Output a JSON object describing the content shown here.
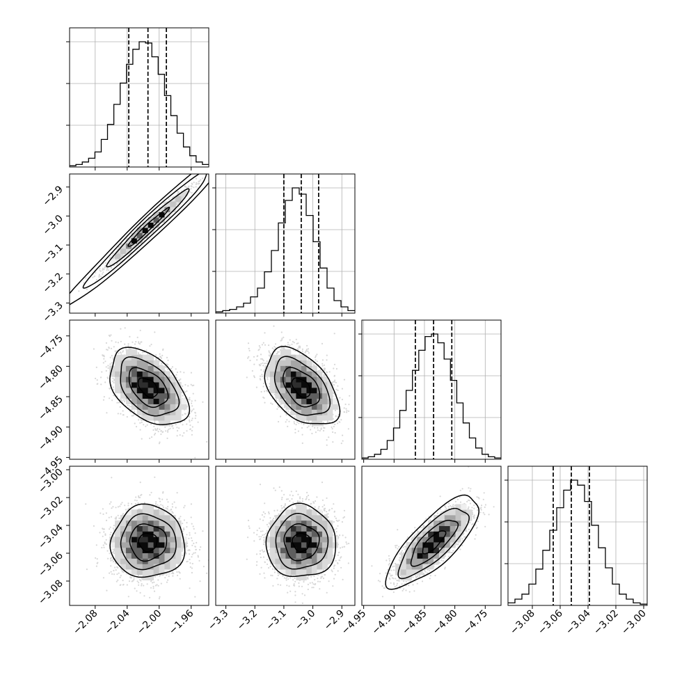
{
  "chart_data": {
    "type": "corner",
    "title": "",
    "parameters": [
      {
        "id": "p1",
        "label": "",
        "range": [
          -2.112,
          -1.938
        ],
        "ticks": [
          -2.08,
          -2.04,
          -2.0,
          -1.96
        ],
        "tick_labels": [
          "−2.08",
          "−2.04",
          "−2.00",
          "−1.96"
        ],
        "quantiles": [
          -2.038,
          -2.014,
          -1.991
        ],
        "mean": -2.014,
        "sd": 0.023
      },
      {
        "id": "p2",
        "label": "",
        "range": [
          -3.335,
          -2.855
        ],
        "ticks": [
          -3.3,
          -3.2,
          -3.1,
          -3.0,
          -2.9
        ],
        "tick_labels": [
          "−3.3",
          "−3.2",
          "−3.1",
          "−3.0",
          "−2.9"
        ],
        "quantiles": [
          -3.1,
          -3.04,
          -2.98
        ],
        "mean": -3.04,
        "sd": 0.06
      },
      {
        "id": "p3",
        "label": "",
        "range": [
          -4.953,
          -4.724
        ],
        "ticks": [
          -4.95,
          -4.9,
          -4.85,
          -4.8,
          -4.75
        ],
        "tick_labels": [
          "−4.95",
          "−4.90",
          "−4.85",
          "−4.80",
          "−4.75"
        ],
        "quantiles": [
          -4.865,
          -4.835,
          -4.805
        ],
        "mean": -4.835,
        "sd": 0.03
      },
      {
        "id": "p4",
        "label": "",
        "range": [
          -3.0975,
          -2.9975
        ],
        "ticks": [
          -3.08,
          -3.06,
          -3.04,
          -3.02,
          -3.0
        ],
        "tick_labels": [
          "−3.08",
          "−3.06",
          "−3.04",
          "−3.02",
          "−3.00"
        ],
        "quantiles": [
          -3.065,
          -3.052,
          -3.039
        ],
        "mean": -3.052,
        "sd": 0.013
      }
    ],
    "correlations": {
      "p1_p2": 0.98,
      "p1_p3": -0.45,
      "p2_p3": -0.45,
      "p1_p4": 0.0,
      "p2_p4": 0.0,
      "p3_p4": 0.78
    },
    "histograms": {
      "p1": [
        0.01,
        0.02,
        0.04,
        0.07,
        0.12,
        0.22,
        0.34,
        0.5,
        0.67,
        0.82,
        0.94,
        1.0,
        0.99,
        0.88,
        0.74,
        0.57,
        0.41,
        0.27,
        0.16,
        0.09,
        0.04,
        0.02
      ],
      "p2": [
        0.01,
        0.02,
        0.03,
        0.05,
        0.08,
        0.13,
        0.2,
        0.33,
        0.5,
        0.72,
        0.9,
        1.0,
        0.95,
        0.78,
        0.57,
        0.36,
        0.2,
        0.1,
        0.05,
        0.02
      ],
      "p3": [
        0.01,
        0.02,
        0.04,
        0.08,
        0.15,
        0.25,
        0.39,
        0.55,
        0.71,
        0.87,
        0.98,
        1.0,
        0.93,
        0.8,
        0.63,
        0.45,
        0.29,
        0.17,
        0.09,
        0.04,
        0.02,
        0.01
      ],
      "p4": [
        0.02,
        0.05,
        0.09,
        0.17,
        0.29,
        0.44,
        0.6,
        0.78,
        0.92,
        1.0,
        0.96,
        0.83,
        0.64,
        0.46,
        0.3,
        0.17,
        0.09,
        0.05,
        0.02,
        0.01
      ]
    },
    "contour_levels_sigma": [
      0.5,
      1.0,
      1.5,
      2.0
    ],
    "quantile_style": "dashed",
    "grid": true,
    "legend": "none"
  }
}
